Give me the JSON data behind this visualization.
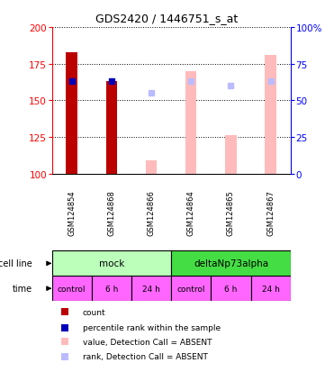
{
  "title": "GDS2420 / 1446751_s_at",
  "samples": [
    "GSM124854",
    "GSM124868",
    "GSM124866",
    "GSM124864",
    "GSM124865",
    "GSM124867"
  ],
  "ylim_left": [
    100,
    200
  ],
  "ylim_right": [
    0,
    100
  ],
  "yticks_left": [
    100,
    125,
    150,
    175,
    200
  ],
  "yticks_right": [
    0,
    25,
    50,
    75,
    100
  ],
  "bar_width": 0.28,
  "count_values": [
    183,
    163,
    null,
    null,
    null,
    null
  ],
  "count_color": "#bb0000",
  "rank_present_values": [
    163,
    163,
    null,
    null,
    null,
    null
  ],
  "rank_present_color": "#0000bb",
  "value_absent": [
    null,
    null,
    109,
    170,
    126,
    181
  ],
  "value_absent_color": "#ffbbbb",
  "rank_absent_values": [
    null,
    null,
    155,
    163,
    160,
    163
  ],
  "rank_absent_color": "#bbbbff",
  "cell_line_groups": [
    {
      "label": "mock",
      "cols": [
        0,
        1,
        2
      ],
      "color": "#bbffbb"
    },
    {
      "label": "deltaNp73alpha",
      "cols": [
        3,
        4,
        5
      ],
      "color": "#44dd44"
    }
  ],
  "time_labels": [
    "control",
    "6 h",
    "24 h",
    "control",
    "6 h",
    "24 h"
  ],
  "time_color": "#ff66ff",
  "cell_line_label": "cell line",
  "time_label": "time",
  "legend_items": [
    {
      "label": "count",
      "color": "#bb0000"
    },
    {
      "label": "percentile rank within the sample",
      "color": "#0000bb"
    },
    {
      "label": "value, Detection Call = ABSENT",
      "color": "#ffbbbb"
    },
    {
      "label": "rank, Detection Call = ABSENT",
      "color": "#bbbbff"
    }
  ],
  "grid_color": "#000000",
  "plot_bg": "#ffffff",
  "sample_bg": "#cccccc",
  "title_fontsize": 9
}
